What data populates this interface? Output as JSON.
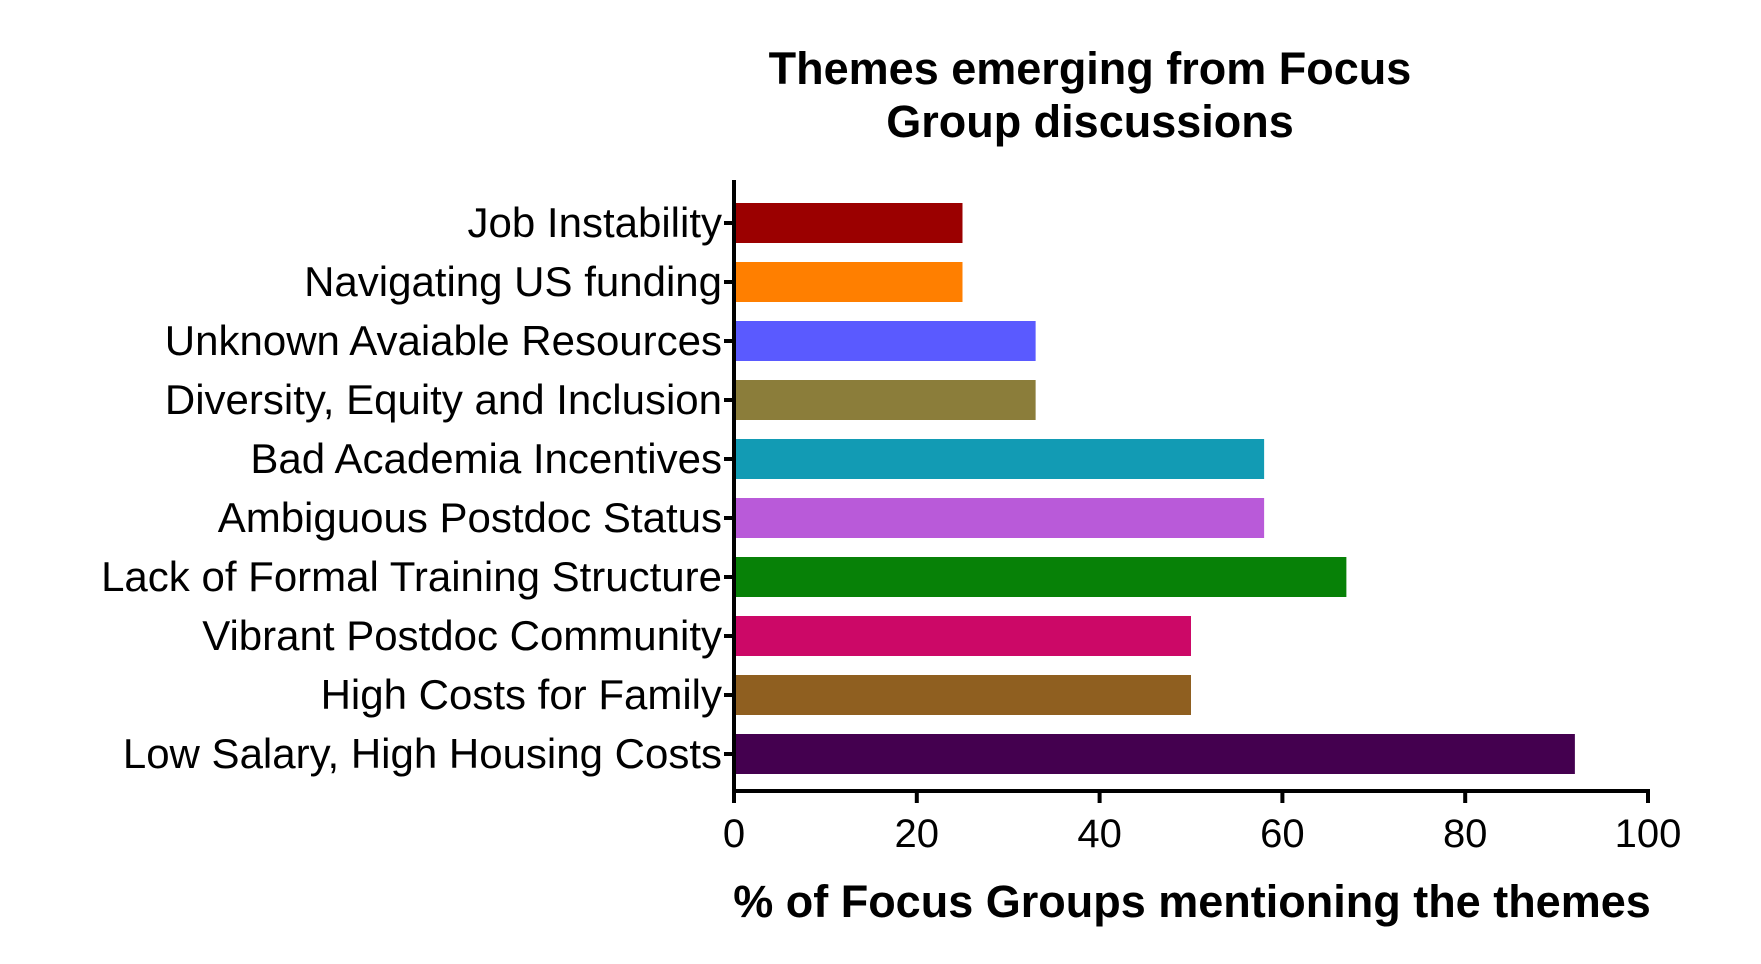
{
  "chart_data": {
    "type": "bar",
    "orientation": "horizontal",
    "title": [
      "Themes emerging from Focus",
      "Group discussions"
    ],
    "xlabel": "% of Focus Groups mentioning the themes",
    "ylabel": "",
    "xlim": [
      0,
      100
    ],
    "xticks": [
      0,
      20,
      40,
      60,
      80,
      100
    ],
    "grid": false,
    "legend": "none",
    "categories": [
      "Job Instability",
      "Navigating US funding",
      "Unknown Avaiable Resources",
      "Diversity, Equity and Inclusion",
      "Bad Academia Incentives",
      "Ambiguous Postdoc Status",
      "Lack of Formal Training Structure",
      "Vibrant Postdoc Community",
      "High Costs for Family",
      "Low Salary, High Housing Costs"
    ],
    "values": [
      25,
      25,
      33,
      33,
      58,
      58,
      67,
      50,
      50,
      92
    ],
    "colors": [
      "#9b0000",
      "#ff7f00",
      "#5a5aff",
      "#8b7d3a",
      "#129bb4",
      "#b95ad9",
      "#078107",
      "#cc0867",
      "#8f5f20",
      "#44004f"
    ]
  }
}
